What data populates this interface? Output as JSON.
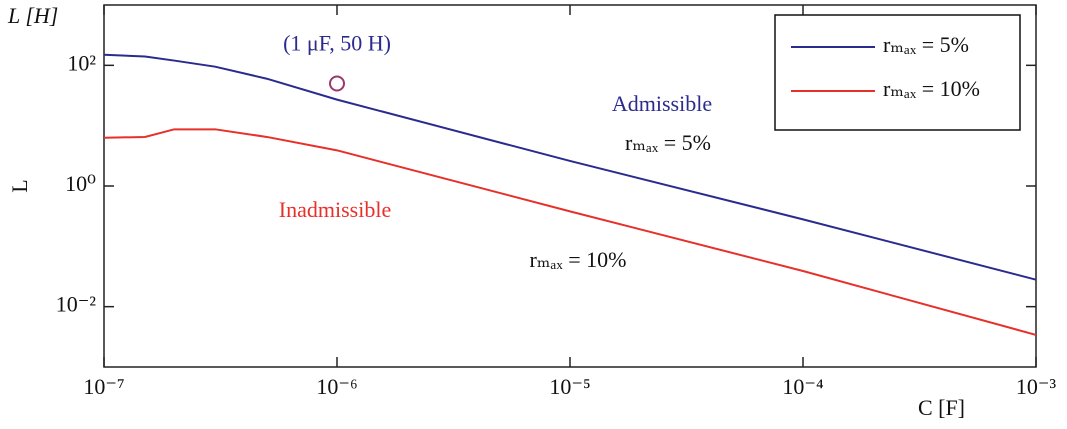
{
  "chart_data": {
    "type": "line",
    "title_y": "L [H]",
    "ylabel": "L",
    "xlabel": "C [F]",
    "xscale": "log",
    "yscale": "log",
    "x": [
      1e-07,
      1.5e-07,
      2e-07,
      3e-07,
      5e-07,
      1e-06,
      1e-05,
      0.0001,
      0.001
    ],
    "series": [
      {
        "name": "rₘₐₓ = 5%",
        "color": "#2b2b8f",
        "values": [
          150,
          140,
          120,
          95,
          60,
          27,
          2.6,
          0.28,
          0.028
        ]
      },
      {
        "name": "rₘₐₓ = 10%",
        "color": "#e8302a",
        "values": [
          6.3,
          6.5,
          8.7,
          8.7,
          6.5,
          3.9,
          0.38,
          0.039,
          0.0034
        ]
      }
    ],
    "xlim": [
      1e-07,
      0.001
    ],
    "ylim": [
      0.001,
      1000
    ],
    "xticks": [
      {
        "value": 1e-07,
        "label": "10⁻⁷"
      },
      {
        "value": 1e-06,
        "label": "10⁻⁶"
      },
      {
        "value": 1e-05,
        "label": "10⁻⁵"
      },
      {
        "value": 0.0001,
        "label": "10⁻⁴"
      },
      {
        "value": 0.001,
        "label": "10⁻³"
      }
    ],
    "yticks": [
      {
        "value": 0.01,
        "label": "10⁻²"
      },
      {
        "value": 1,
        "label": "10⁰"
      },
      {
        "value": 100,
        "label": "10²"
      }
    ],
    "legend": "upper right",
    "point": {
      "label": "(1 μF, 50 H)",
      "x": 1e-06,
      "y": 50,
      "color": "#9a3a6a"
    },
    "annotations": [
      {
        "text": "Admissible",
        "color": "#2b2b8f"
      },
      {
        "text": "rₘₐₓ = 5%",
        "color": "#111111"
      },
      {
        "text": "Inadmissible",
        "color": "#e8302a"
      },
      {
        "text": "rₘₐₓ = 10%",
        "color": "#111111"
      }
    ]
  }
}
